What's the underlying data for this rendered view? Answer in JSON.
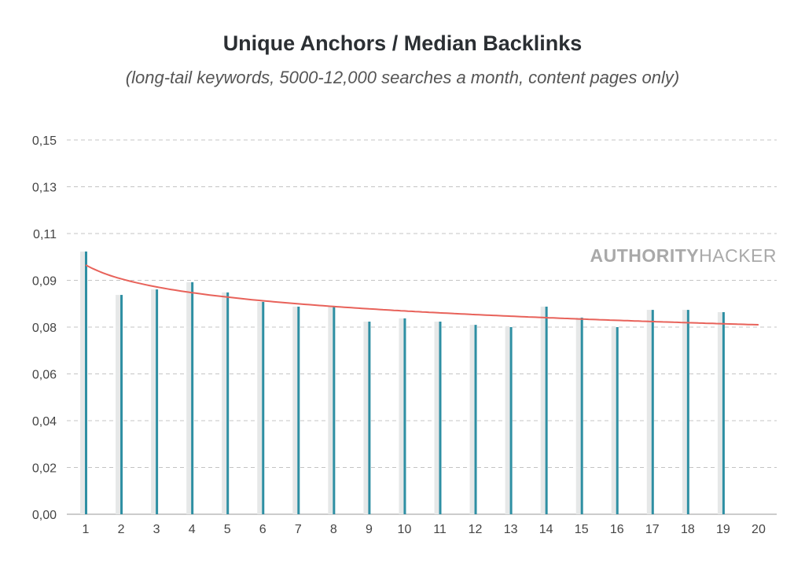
{
  "chart_data": {
    "type": "bar",
    "title": "Unique Anchors / Median Backlinks",
    "subtitle": "(long-tail keywords, 5000-12,000 searches a month, content pages only)",
    "xlabel": "",
    "ylabel": "",
    "categories": [
      "1",
      "2",
      "3",
      "4",
      "5",
      "6",
      "7",
      "8",
      "9",
      "10",
      "11",
      "12",
      "13",
      "14",
      "15",
      "16",
      "17",
      "18",
      "19",
      "20"
    ],
    "series": [
      {
        "name": "Unique Anchors / Median Backlinks",
        "color": "#2e8fa3",
        "values": [
          0.1053,
          0.0879,
          0.0901,
          0.093,
          0.0889,
          0.0851,
          0.0832,
          0.0832,
          0.0772,
          0.0785,
          0.0772,
          0.0759,
          0.075,
          0.0832,
          0.0788,
          0.075,
          0.0819,
          0.0819,
          0.081,
          null
        ]
      },
      {
        "name": "background",
        "color": "#e6e8e8",
        "values": [
          0.1053,
          0.0879,
          0.0901,
          0.093,
          0.0889,
          0.0851,
          0.0832,
          0.0832,
          0.0772,
          0.0785,
          0.0772,
          0.0759,
          0.075,
          0.0832,
          0.0788,
          0.075,
          0.0819,
          0.0819,
          0.081,
          null
        ]
      }
    ],
    "trendline": {
      "type": "logarithmic",
      "a": 0.0999,
      "b": -0.008,
      "color": "#e8625a"
    },
    "ylim": [
      0,
      0.15
    ],
    "yticks": [
      0,
      0.01875,
      0.0375,
      0.05625,
      0.075,
      0.09375,
      0.1125,
      0.13125,
      0.15
    ],
    "ytick_labels": [
      "0,00",
      "0,02",
      "0,04",
      "0,06",
      "0,08",
      "0,09",
      "0,11",
      "0,13",
      "0,15"
    ],
    "grid": true,
    "legend": "none"
  },
  "watermark": {
    "bold": "AUTHORITY",
    "light": "HACKER"
  }
}
